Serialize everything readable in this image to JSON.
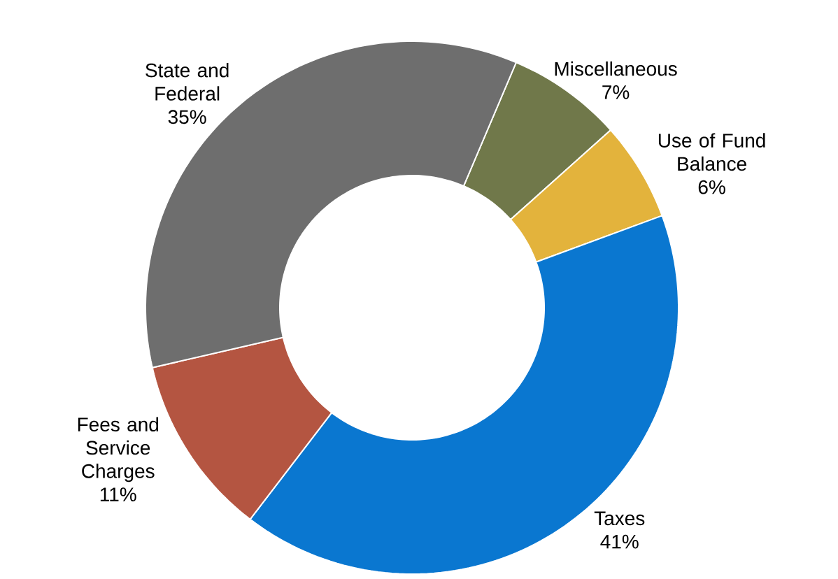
{
  "chart_data": {
    "type": "donut",
    "categories": [
      "Miscellaneous",
      "Use of Fund Balance",
      "Taxes",
      "Fees and Service Charges",
      "State and Federal"
    ],
    "values": [
      7,
      6,
      41,
      11,
      35
    ],
    "value_labels": [
      "7%",
      "6%",
      "41%",
      "11%",
      "35%"
    ],
    "colors": [
      "#70784a",
      "#e3b33c",
      "#0a77d0",
      "#b45541",
      "#6e6e6e"
    ]
  }
}
